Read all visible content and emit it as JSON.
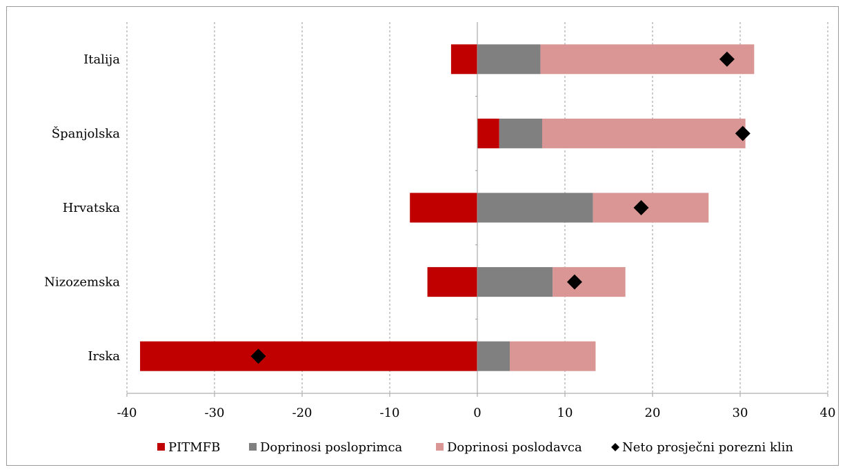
{
  "chart_data": {
    "type": "bar",
    "orientation": "horizontal",
    "stacked": true,
    "title": "",
    "xlabel": "",
    "ylabel": "",
    "xlim": [
      -40,
      40
    ],
    "x_ticks": [
      -40,
      -30,
      -20,
      -10,
      0,
      10,
      20,
      30,
      40
    ],
    "x_tick_labels": [
      "-40",
      "-30",
      "-20",
      "-10",
      "0",
      "10",
      "20",
      "30",
      "40"
    ],
    "grid": "vertical dashed",
    "legend_position": "bottom",
    "categories": [
      "Italija",
      "Španjolska",
      "Hrvatska",
      "Nizozemska",
      "Irska"
    ],
    "series": [
      {
        "name": "PITMFB",
        "color": "#c00000",
        "values": [
          -3,
          2.5,
          -7.7,
          -5.7,
          -38.5
        ]
      },
      {
        "name": "Doprinosi posloprimca",
        "color": "#808080",
        "values": [
          7.2,
          4.9,
          13.2,
          8.6,
          3.7
        ]
      },
      {
        "name": "Doprinosi poslodavca",
        "color": "#d99694",
        "values": [
          24.4,
          23.2,
          13.2,
          8.3,
          9.8
        ]
      }
    ],
    "markers": {
      "name": "Neto prosječni porezni klin",
      "color": "#000000",
      "shape": "diamond",
      "values": [
        28.5,
        30.3,
        18.7,
        11.1,
        -25
      ]
    }
  }
}
